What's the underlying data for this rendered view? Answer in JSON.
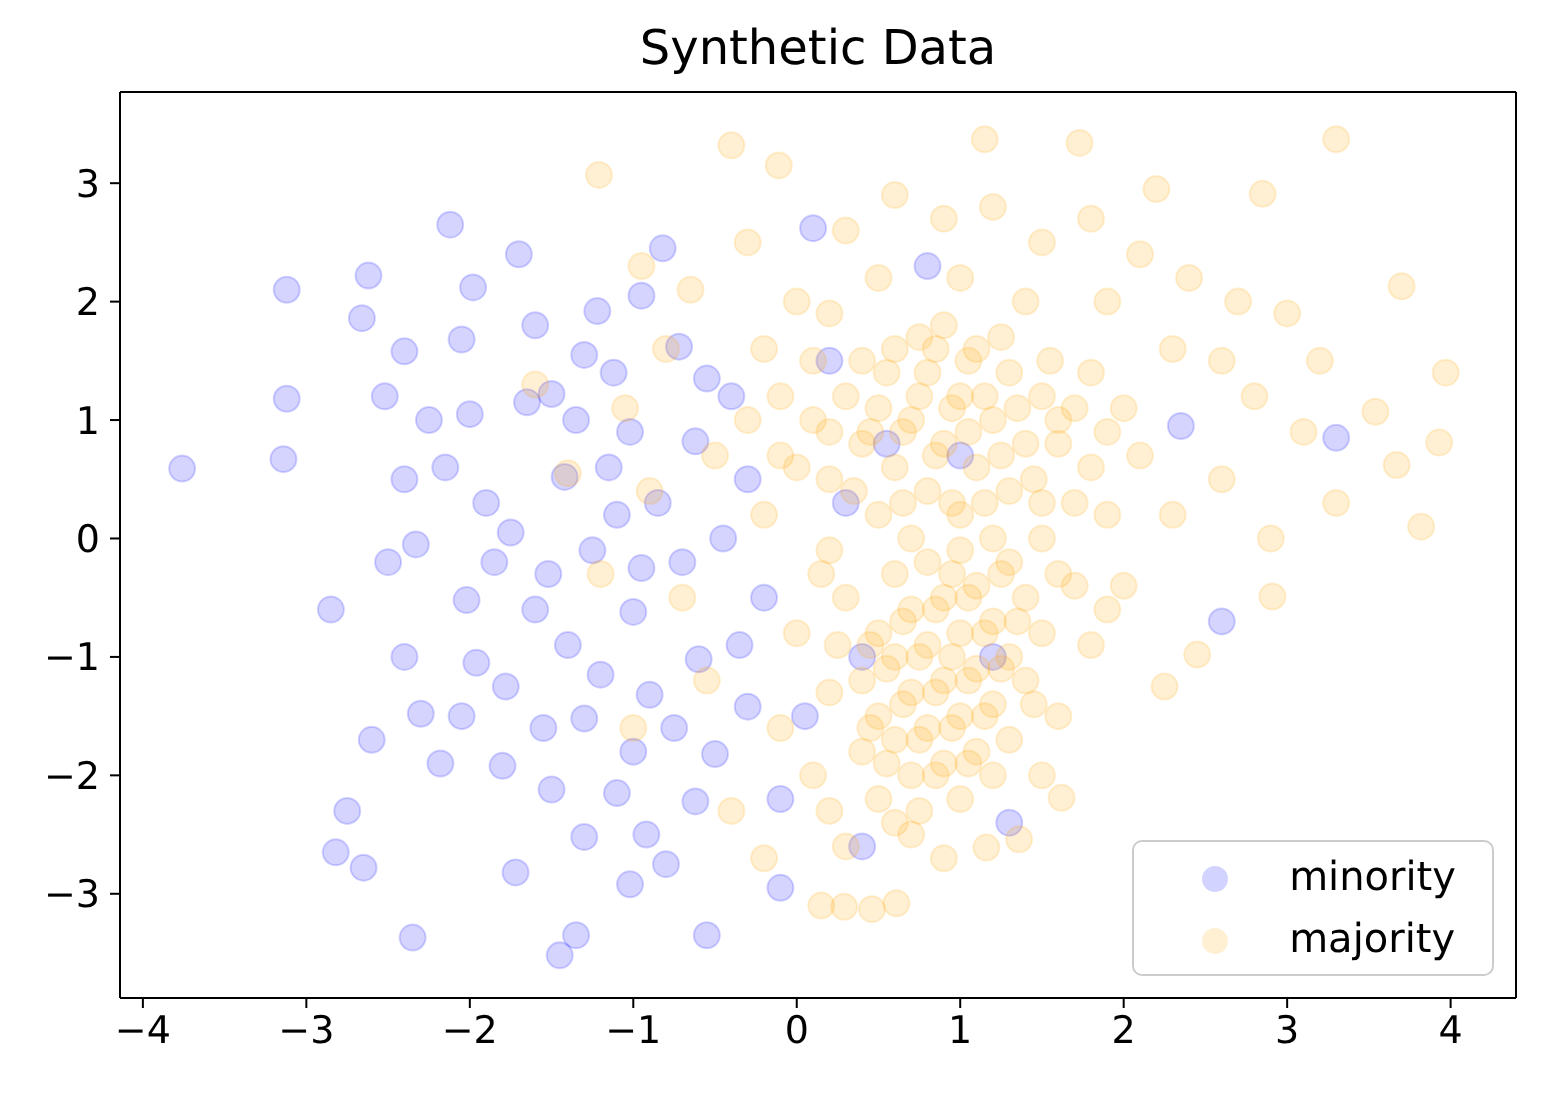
{
  "chart_data": {
    "type": "scatter",
    "title": "Synthetic Data",
    "xlim": [
      -4.14,
      4.4
    ],
    "xticks": [
      {
        "value": -4,
        "label": "−4"
      },
      {
        "value": -3,
        "label": "−3"
      },
      {
        "value": -2,
        "label": "−2"
      },
      {
        "value": -1,
        "label": "−1"
      },
      0,
      1,
      2,
      3,
      4
    ],
    "ylim": [
      -3.88,
      3.77
    ],
    "yticks": [
      {
        "value": -3,
        "label": "−3"
      },
      {
        "value": -2,
        "label": "−2"
      },
      {
        "value": -1,
        "label": "−1"
      },
      0,
      1,
      2,
      3
    ],
    "legend": "bottom right",
    "marker": "circle",
    "series": [
      {
        "name": "minority",
        "color": "#0000ff",
        "x": [
          -3.76,
          -3.12,
          -3.12,
          -3.14,
          -2.62,
          -2.66,
          -2.52,
          -2.4,
          -2.33,
          -2.4,
          -2.85,
          -2.82,
          -2.75,
          -2.65,
          -2.35,
          -2.4,
          -2.3,
          -2.18,
          -2.12,
          -1.98,
          -2.05,
          -2,
          -1.9,
          -2.02,
          -1.96,
          -1.8,
          -1.72,
          -1.78,
          -1.7,
          -1.6,
          -1.5,
          -1.42,
          -1.52,
          -1.4,
          -1.3,
          -1.5,
          -1.3,
          -1.35,
          -1.45,
          -1.22,
          -1.12,
          -1.02,
          -1.1,
          -1,
          -0.9,
          -1,
          -0.92,
          -1.02,
          -0.82,
          -0.72,
          -0.62,
          -0.7,
          -0.6,
          -0.5,
          -0.62,
          -0.55,
          -0.8,
          -0.4,
          -0.3,
          -0.2,
          -0.3,
          -0.1,
          -0.1,
          0.1,
          0.2,
          0.3,
          0.4,
          0.4,
          0.8,
          1,
          1.2,
          1.3,
          2.35,
          3.3,
          2.6,
          -1.75,
          -1.6,
          -1.25,
          -1.15,
          -0.85,
          -0.95,
          -1.35,
          -1.85,
          -1.65,
          -2.15,
          -0.75,
          -1.2,
          -1.55,
          -2.05,
          -0.45,
          -1.3,
          -0.55,
          -0.95,
          -2.25,
          -1.1,
          -0.35,
          0.55,
          0.05,
          -2.5,
          -2.6
        ],
        "values": [
          0.59,
          2.1,
          1.18,
          0.67,
          2.22,
          1.86,
          1.2,
          1.58,
          -0.05,
          0.5,
          -0.6,
          -2.65,
          -2.3,
          -2.78,
          -3.37,
          -1,
          -1.48,
          -1.9,
          2.65,
          2.12,
          1.68,
          1.05,
          0.3,
          -0.52,
          -1.05,
          -1.92,
          -2.82,
          -1.25,
          2.4,
          1.8,
          1.22,
          0.52,
          -0.3,
          -0.9,
          -1.52,
          -2.12,
          -2.52,
          -3.35,
          -3.52,
          1.92,
          1.4,
          0.9,
          0.2,
          -0.62,
          -1.32,
          -1.8,
          -2.5,
          -2.92,
          2.45,
          1.62,
          0.82,
          -0.2,
          -1.02,
          -1.82,
          -2.22,
          -3.35,
          -2.75,
          1.2,
          0.5,
          -0.5,
          -1.42,
          -2.2,
          -2.95,
          2.62,
          1.5,
          0.3,
          -1,
          -2.6,
          2.3,
          0.7,
          -1,
          -2.4,
          0.95,
          0.85,
          -0.7,
          0.05,
          -0.6,
          -0.1,
          0.6,
          0.3,
          -0.25,
          1,
          -0.2,
          1.15,
          0.6,
          -1.6,
          -1.15,
          -1.6,
          -1.5,
          0,
          1.55,
          1.35,
          2.05,
          1,
          -2.15,
          -0.9,
          0.8,
          -1.5,
          -0.2,
          -1.7
        ]
      },
      {
        "name": "majority",
        "color": "#ffa500",
        "x": [
          -1.21,
          -0.4,
          -0.11,
          1.15,
          1.73,
          3.3,
          2.85,
          3.7,
          3.97,
          3.93,
          3.82,
          3.54,
          3.67,
          0.15,
          0.29,
          0.46,
          0.61,
          1.16,
          1.36,
          1.62,
          2.25,
          2.45,
          2.91,
          -1.4,
          -1.05,
          -0.9,
          -0.8,
          -0.65,
          -0.5,
          -0.7,
          -0.55,
          -0.4,
          -0.2,
          -1.6,
          -1.2,
          -0.3,
          -0.95,
          -1,
          0,
          0.3,
          0.6,
          0.9,
          1.2,
          1.5,
          1.8,
          2.1,
          2.4,
          2.7,
          3,
          2.2,
          0.5,
          1,
          1.4,
          1.9,
          0.2,
          -0.2,
          3.2,
          2.8,
          3.1,
          3.3,
          2.6,
          2.9,
          2.3,
          2,
          2.1,
          1.8,
          2.3,
          2.6,
          -0.3,
          -0.1,
          0,
          0.1,
          0.2,
          0.3,
          0.4,
          0.4,
          0.5,
          0.5,
          0.6,
          0.6,
          0.7,
          0.7,
          0.8,
          0.8,
          0.9,
          0.9,
          1,
          1,
          1.1,
          1.1,
          1.2,
          1.2,
          1.3,
          1.3,
          1.4,
          1.5,
          1.5,
          1.6,
          1.7,
          1.7,
          1.9,
          -0.2,
          0.2,
          1.9,
          2,
          0.3,
          0.4,
          0.4,
          0.5,
          0.5,
          0.5,
          0.6,
          0.6,
          0.6,
          0.7,
          0.7,
          0.7,
          0.7,
          0.8,
          0.8,
          0.8,
          0.9,
          0.9,
          0.9,
          1,
          1,
          1,
          1,
          1.1,
          1.1,
          1.1,
          1.2,
          1.2,
          1.3,
          1.3,
          1.3,
          1.4,
          1.4,
          1.5,
          1.6,
          1.6,
          1.8,
          1.9,
          0.2,
          0.1,
          0.3,
          0.9,
          1.5,
          0,
          -0.1,
          0.2,
          0.45,
          0.55,
          0.65,
          0.75,
          0.85,
          0.85,
          0.95,
          0.95,
          1.05,
          1.05,
          1.15,
          1.15,
          1.25,
          1.25,
          1.35,
          0.65,
          0.75,
          1.45,
          0.35,
          1.55,
          0.45,
          0.55,
          0.65,
          0.65,
          0.75,
          0.75,
          0.85,
          0.85,
          0.85,
          0.95,
          0.95,
          1.05,
          1.05,
          1.05,
          1.15,
          1.15,
          1.25,
          1.25,
          0.55,
          0.45,
          0.75,
          1.35,
          0.95,
          0.6,
          1.2,
          0.1,
          -0.1,
          0.2,
          1.6,
          1.8,
          1.5,
          1.7,
          1.45,
          0.25,
          0.15
        ],
        "values": [
          3.07,
          3.32,
          3.15,
          3.37,
          3.34,
          3.37,
          2.91,
          2.13,
          1.4,
          0.81,
          0.1,
          1.07,
          0.62,
          -3.1,
          -3.11,
          -3.13,
          -3.08,
          -2.61,
          -2.54,
          -2.19,
          -1.25,
          -0.98,
          -0.49,
          0.55,
          1.1,
          0.4,
          1.6,
          2.1,
          0.7,
          -0.5,
          -1.2,
          -2.3,
          -2.7,
          1.3,
          -0.3,
          2.5,
          2.3,
          -1.6,
          2,
          2.6,
          2.9,
          2.7,
          2.8,
          2.5,
          2.7,
          2.4,
          2.2,
          2,
          1.9,
          2.95,
          2.2,
          2.2,
          2,
          2,
          1.9,
          1.6,
          1.5,
          1.2,
          0.9,
          0.3,
          0.5,
          0,
          0.2,
          -0.4,
          0.7,
          1.4,
          1.6,
          1.5,
          1,
          1.2,
          0.6,
          1,
          0.5,
          1.2,
          0.8,
          1.5,
          0.2,
          1.1,
          0.6,
          1.6,
          0,
          1,
          0.4,
          1.4,
          0.8,
          1.8,
          0.2,
          1.2,
          0.6,
          1.6,
          0,
          1,
          0.4,
          1.4,
          0.8,
          1.2,
          0.3,
          0.8,
          1.1,
          0.3,
          0.9,
          0.2,
          -0.1,
          0.2,
          1.1,
          -0.5,
          -1.2,
          -1.8,
          -0.8,
          -1.5,
          -2.2,
          -0.3,
          -1,
          -1.7,
          -0.6,
          -1.3,
          -2,
          -2.5,
          -0.2,
          -0.9,
          -1.6,
          -0.5,
          -1.2,
          -1.9,
          -0.1,
          -0.8,
          -1.5,
          -2.2,
          -0.4,
          -1.1,
          -1.8,
          -0.7,
          -1.4,
          -0.2,
          -1,
          -1.7,
          -0.5,
          -1.2,
          -0.8,
          -0.3,
          -1.5,
          -0.9,
          -0.6,
          -1.3,
          -2,
          -2.6,
          -2.7,
          -2,
          -0.8,
          -1.6,
          -2.3,
          0.9,
          1.4,
          0.3,
          1.2,
          0.7,
          1.6,
          0.3,
          1.1,
          0.9,
          1.5,
          0.3,
          1.2,
          0.7,
          1.7,
          1.1,
          0.9,
          1.7,
          0.5,
          0.4,
          1.5,
          -0.9,
          -1.9,
          -1.4,
          -0.7,
          -1,
          -1.7,
          -1.3,
          -2,
          -0.6,
          -1,
          -1.6,
          -0.5,
          -1.2,
          -1.9,
          -0.8,
          -1.5,
          -1.1,
          -0.3,
          -1.1,
          -1.6,
          -2.3,
          -0.7,
          -0.3,
          -2.4,
          -2,
          1.5,
          0.7,
          0.9,
          1,
          0.6,
          0,
          -0.4,
          -1.4,
          -0.9,
          -0.3
        ]
      }
    ]
  }
}
